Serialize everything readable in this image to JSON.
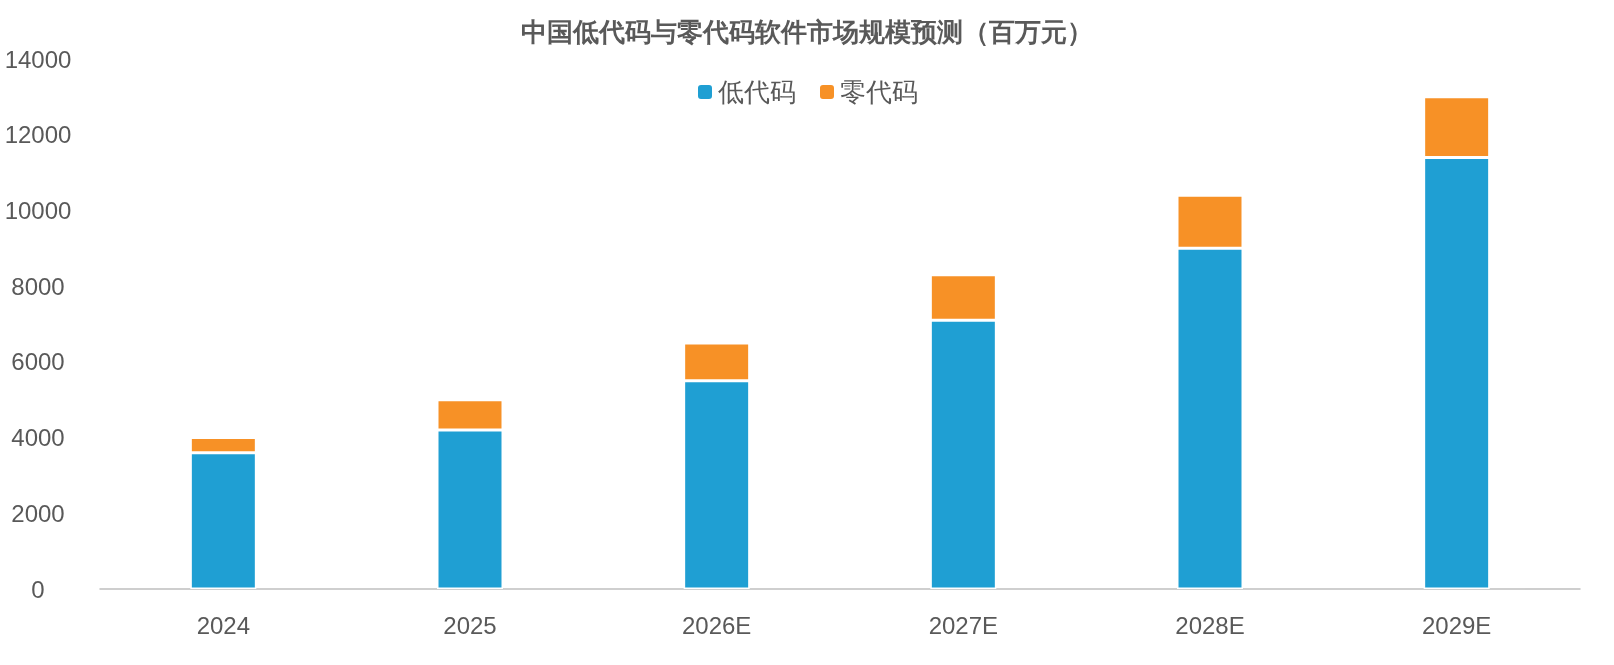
{
  "chart_data": {
    "type": "bar",
    "title": "中国低代码与零代码软件市场规模预测（百万元）",
    "categories": [
      "2024",
      "2025",
      "2026E",
      "2027E",
      "2028E",
      "2029E"
    ],
    "stacked": true,
    "series": [
      {
        "name": "低代码",
        "color": "#1f9fd3",
        "values": [
          3600,
          4200,
          5500,
          7100,
          9000,
          11400
        ]
      },
      {
        "name": "零代码",
        "color": "#f79126",
        "values": [
          400,
          800,
          1000,
          1200,
          1400,
          1600
        ]
      }
    ],
    "ylim": [
      0,
      14000
    ],
    "yticks": [
      0,
      2000,
      4000,
      6000,
      8000,
      10000,
      12000,
      14000
    ],
    "grid": false,
    "legend": "top"
  }
}
